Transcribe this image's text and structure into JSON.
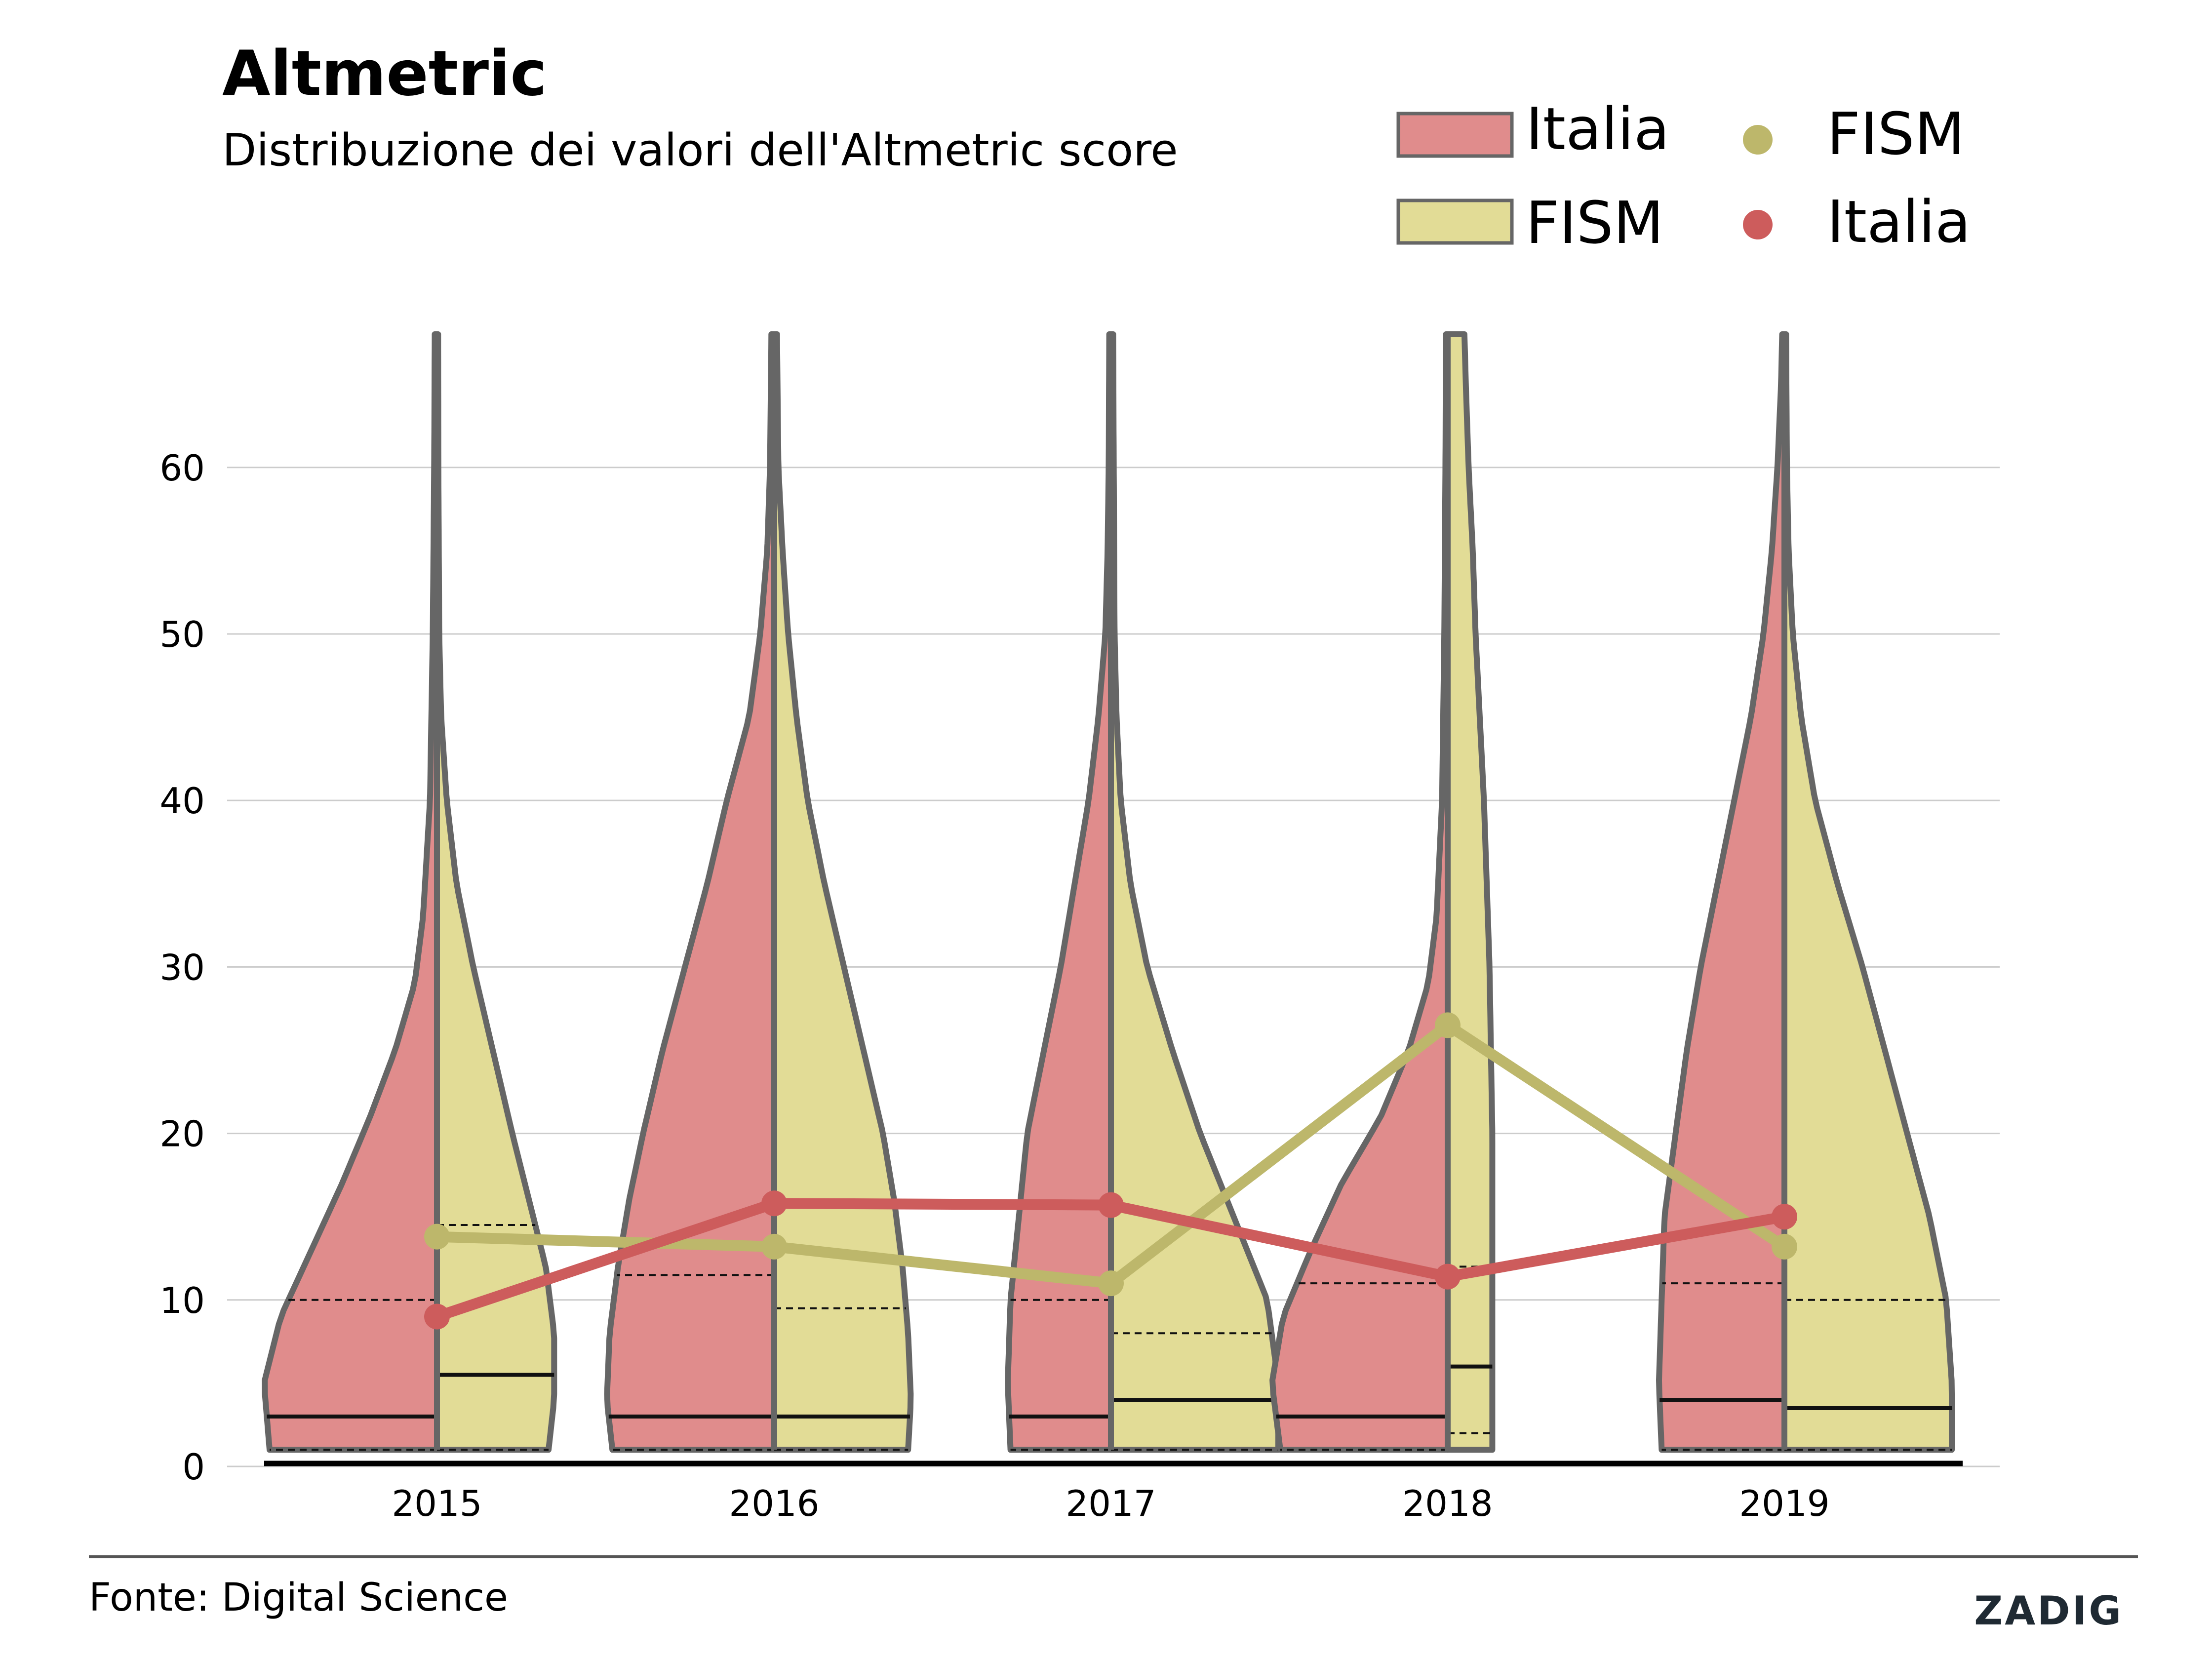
{
  "header": {
    "title": "Altmetric",
    "subtitle": "Distribuzione dei valori dell'Altmetric score"
  },
  "footer": {
    "source": "Fonte: Digital Science",
    "brand": "ZADIG"
  },
  "colors": {
    "italia_fill": "#e08c8c",
    "fism_fill": "#e2dc96",
    "outline": "#666666",
    "italia_line": "#cd5c5c",
    "fism_line": "#bdb76b",
    "grid": "#cccccc",
    "brand_accent": "#3f8f82"
  },
  "chart_data": {
    "type": "violin",
    "years": [
      "2015",
      "2016",
      "2017",
      "2018",
      "2019"
    ],
    "ylim": [
      0,
      68
    ],
    "yticks": [
      0,
      10,
      20,
      30,
      40,
      50,
      60
    ],
    "grid": "horizontal",
    "legend": {
      "position": "top-right",
      "entries": [
        {
          "label": "Italia",
          "kind": "violin-patch",
          "series": "italia"
        },
        {
          "label": "FISM",
          "kind": "violin-patch",
          "series": "fism"
        },
        {
          "label": "FISM",
          "kind": "line-marker",
          "series": "fism"
        },
        {
          "label": "Italia",
          "kind": "line-marker",
          "series": "italia"
        }
      ]
    },
    "mean_series": [
      {
        "name": "Italia",
        "key": "italia",
        "values": [
          9.0,
          15.8,
          15.7,
          11.4,
          15.0
        ]
      },
      {
        "name": "FISM",
        "key": "fism",
        "values": [
          13.8,
          13.2,
          11.0,
          26.5,
          13.2
        ]
      }
    ],
    "violins": [
      {
        "year": "2015",
        "italia": {
          "median": 3,
          "q1": 1,
          "q3": 10,
          "max": 68,
          "profile": [
            [
              1,
              0.6
            ],
            [
              5,
              0.62
            ],
            [
              9,
              0.56
            ],
            [
              13,
              0.45
            ],
            [
              17,
              0.34
            ],
            [
              21,
              0.24
            ],
            [
              25,
              0.15
            ],
            [
              29,
              0.08
            ],
            [
              33,
              0.05
            ],
            [
              40,
              0.025
            ],
            [
              50,
              0.015
            ],
            [
              60,
              0.01
            ],
            [
              68,
              0.008
            ]
          ]
        },
        "fism": {
          "median": 5.5,
          "q1": 1,
          "q3": 14.5,
          "max": 68,
          "profile": [
            [
              1,
              0.4
            ],
            [
              4,
              0.42
            ],
            [
              8,
              0.42
            ],
            [
              12,
              0.39
            ],
            [
              16,
              0.33
            ],
            [
              20,
              0.27
            ],
            [
              25,
              0.2
            ],
            [
              30,
              0.13
            ],
            [
              35,
              0.07
            ],
            [
              40,
              0.035
            ],
            [
              45,
              0.015
            ],
            [
              50,
              0.008
            ],
            [
              60,
              0.005
            ],
            [
              68,
              0.004
            ]
          ]
        }
      },
      {
        "year": "2016",
        "italia": {
          "median": 3,
          "q1": 1,
          "q3": 11.5,
          "max": 68,
          "profile": [
            [
              1,
              0.58
            ],
            [
              4,
              0.6
            ],
            [
              8,
              0.59
            ],
            [
              12,
              0.56
            ],
            [
              16,
              0.52
            ],
            [
              20,
              0.47
            ],
            [
              25,
              0.4
            ],
            [
              30,
              0.32
            ],
            [
              35,
              0.24
            ],
            [
              40,
              0.17
            ],
            [
              45,
              0.09
            ],
            [
              50,
              0.05
            ],
            [
              55,
              0.025
            ],
            [
              60,
              0.015
            ],
            [
              68,
              0.01
            ]
          ]
        },
        "fism": {
          "median": 3,
          "q1": 1,
          "q3": 9.5,
          "max": 68,
          "profile": [
            [
              1,
              0.48
            ],
            [
              4,
              0.49
            ],
            [
              8,
              0.48
            ],
            [
              12,
              0.46
            ],
            [
              16,
              0.43
            ],
            [
              20,
              0.39
            ],
            [
              25,
              0.32
            ],
            [
              30,
              0.25
            ],
            [
              35,
              0.18
            ],
            [
              40,
              0.12
            ],
            [
              45,
              0.08
            ],
            [
              50,
              0.05
            ],
            [
              55,
              0.03
            ],
            [
              60,
              0.015
            ],
            [
              68,
              0.01
            ]
          ]
        }
      },
      {
        "year": "2017",
        "italia": {
          "median": 3,
          "q1": 1,
          "q3": 10,
          "max": 68,
          "profile": [
            [
              1,
              0.36
            ],
            [
              5,
              0.37
            ],
            [
              10,
              0.36
            ],
            [
              15,
              0.33
            ],
            [
              20,
              0.3
            ],
            [
              25,
              0.24
            ],
            [
              30,
              0.18
            ],
            [
              35,
              0.13
            ],
            [
              40,
              0.08
            ],
            [
              45,
              0.045
            ],
            [
              50,
              0.02
            ],
            [
              55,
              0.012
            ],
            [
              60,
              0.008
            ],
            [
              68,
              0.006
            ]
          ]
        },
        "fism": {
          "median": 4,
          "q1": 1,
          "q3": 8,
          "max": 68,
          "profile": [
            [
              1,
              0.6
            ],
            [
              5,
              0.6
            ],
            [
              10,
              0.56
            ],
            [
              15,
              0.44
            ],
            [
              20,
              0.32
            ],
            [
              25,
              0.22
            ],
            [
              30,
              0.13
            ],
            [
              35,
              0.07
            ],
            [
              40,
              0.035
            ],
            [
              45,
              0.02
            ],
            [
              50,
              0.013
            ],
            [
              60,
              0.01
            ],
            [
              68,
              0.008
            ]
          ]
        }
      },
      {
        "year": "2018",
        "italia": {
          "median": 3,
          "q1": 1,
          "q3": 11,
          "max": 68,
          "profile": [
            [
              1,
              0.6
            ],
            [
              5,
              0.63
            ],
            [
              9,
              0.59
            ],
            [
              13,
              0.49
            ],
            [
              17,
              0.38
            ],
            [
              21,
              0.24
            ],
            [
              25,
              0.14
            ],
            [
              29,
              0.07
            ],
            [
              33,
              0.04
            ],
            [
              40,
              0.02
            ],
            [
              50,
              0.012
            ],
            [
              60,
              0.008
            ],
            [
              68,
              0.006
            ]
          ]
        },
        "fism": {
          "median": 6,
          "q1": 2,
          "q3": 12,
          "max": 68,
          "profile": [
            [
              1,
              0.16
            ],
            [
              10,
              0.16
            ],
            [
              20,
              0.16
            ],
            [
              30,
              0.15
            ],
            [
              40,
              0.13
            ],
            [
              50,
              0.1
            ],
            [
              55,
              0.09
            ],
            [
              60,
              0.075
            ],
            [
              65,
              0.065
            ],
            [
              68,
              0.06
            ]
          ]
        }
      },
      {
        "year": "2019",
        "italia": {
          "median": 4,
          "q1": 1,
          "q3": 11,
          "max": 68,
          "profile": [
            [
              1,
              0.44
            ],
            [
              5,
              0.45
            ],
            [
              10,
              0.44
            ],
            [
              15,
              0.43
            ],
            [
              20,
              0.39
            ],
            [
              25,
              0.35
            ],
            [
              30,
              0.3
            ],
            [
              35,
              0.24
            ],
            [
              40,
              0.18
            ],
            [
              45,
              0.12
            ],
            [
              50,
              0.075
            ],
            [
              55,
              0.045
            ],
            [
              60,
              0.025
            ],
            [
              65,
              0.012
            ],
            [
              68,
              0.008
            ]
          ]
        },
        "fism": {
          "median": 3.5,
          "q1": 1,
          "q3": 10,
          "max": 68,
          "profile": [
            [
              1,
              0.6
            ],
            [
              5,
              0.6
            ],
            [
              10,
              0.58
            ],
            [
              15,
              0.52
            ],
            [
              20,
              0.44
            ],
            [
              25,
              0.36
            ],
            [
              30,
              0.28
            ],
            [
              35,
              0.19
            ],
            [
              40,
              0.11
            ],
            [
              45,
              0.06
            ],
            [
              50,
              0.03
            ],
            [
              55,
              0.015
            ],
            [
              60,
              0.009
            ],
            [
              68,
              0.006
            ]
          ]
        }
      }
    ]
  }
}
